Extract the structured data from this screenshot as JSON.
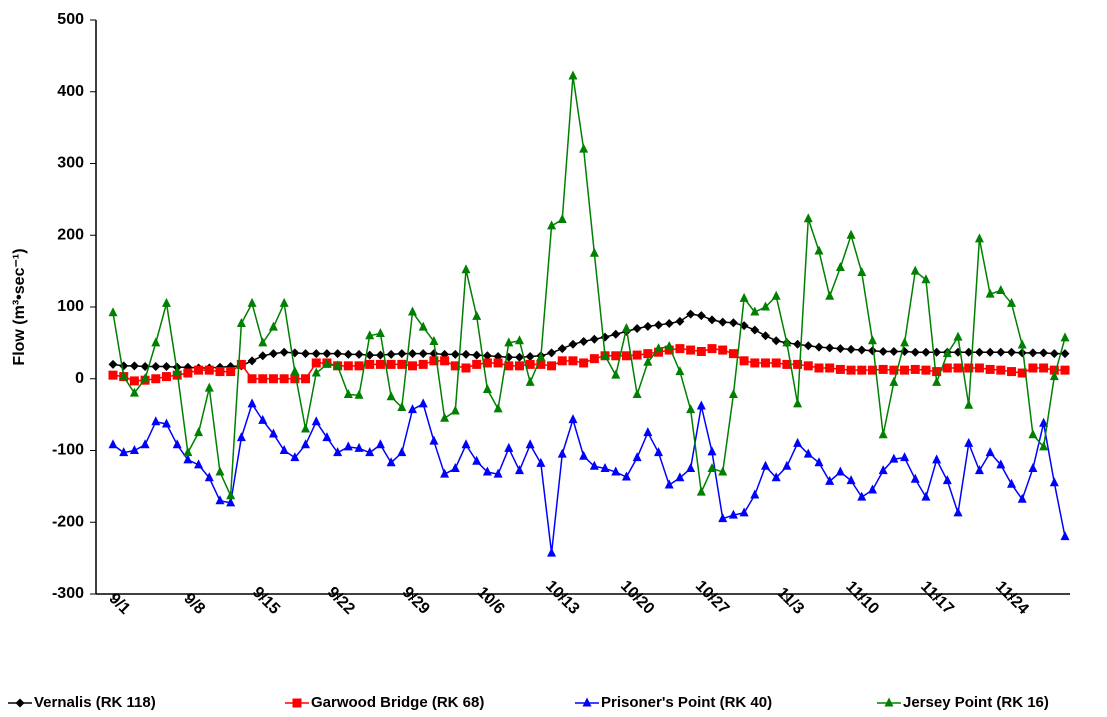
{
  "chart_data": {
    "type": "line",
    "y_label": "Flow (m³•sec⁻¹)",
    "categories": [
      "9/1",
      null,
      null,
      null,
      null,
      null,
      null,
      "9/8",
      null,
      null,
      null,
      null,
      null,
      null,
      "9/15",
      null,
      null,
      null,
      null,
      null,
      null,
      "9/22",
      null,
      null,
      null,
      null,
      null,
      null,
      "9/29",
      null,
      null,
      null,
      null,
      null,
      null,
      "10/6",
      null,
      null,
      null,
      null,
      null,
      null,
      "10/13",
      null,
      null,
      null,
      null,
      null,
      null,
      "10/20",
      null,
      null,
      null,
      null,
      null,
      null,
      "10/27",
      null,
      null,
      null,
      null,
      null,
      null,
      "11/3",
      null,
      null,
      null,
      null,
      null,
      null,
      "11/10",
      null,
      null,
      null,
      null,
      null,
      null,
      "11/17",
      null,
      null,
      null,
      null,
      null,
      null,
      "11/24",
      null,
      null,
      null,
      null,
      null
    ],
    "series": [
      {
        "name": "Vernalis (RK 118)",
        "color": "#000000",
        "marker": "diamond",
        "values": [
          20,
          18,
          18,
          17,
          17,
          17,
          16,
          16,
          15,
          15,
          16,
          17,
          18,
          25,
          32,
          35,
          37,
          36,
          35,
          35,
          35,
          35,
          34,
          34,
          33,
          33,
          34,
          35,
          35,
          35,
          35,
          34,
          34,
          34,
          33,
          32,
          31,
          30,
          30,
          31,
          32,
          36,
          42,
          48,
          52,
          55,
          58,
          62,
          66,
          70,
          73,
          75,
          77,
          80,
          90,
          88,
          82,
          79,
          78,
          74,
          68,
          60,
          53,
          50,
          48,
          46,
          44,
          43,
          42,
          41,
          40,
          39,
          38,
          38,
          38,
          37,
          37,
          37,
          37,
          37,
          37,
          37,
          37,
          37,
          37,
          36,
          36,
          36,
          35,
          35
        ]
      },
      {
        "name": "Garwood Bridge (RK 68)",
        "color": "#ff0000",
        "marker": "square",
        "values": [
          5,
          3,
          -3,
          -2,
          0,
          3,
          5,
          8,
          12,
          12,
          10,
          10,
          20,
          0,
          0,
          0,
          0,
          0,
          0,
          22,
          22,
          18,
          18,
          18,
          20,
          20,
          20,
          20,
          18,
          20,
          25,
          25,
          18,
          15,
          20,
          22,
          22,
          18,
          18,
          20,
          20,
          18,
          25,
          25,
          22,
          28,
          32,
          32,
          32,
          33,
          35,
          37,
          40,
          42,
          40,
          38,
          42,
          40,
          35,
          25,
          22,
          22,
          22,
          20,
          20,
          18,
          15,
          15,
          13,
          12,
          12,
          12,
          13,
          12,
          12,
          13,
          12,
          10,
          15,
          15,
          15,
          15,
          13,
          12,
          10,
          8,
          15,
          15,
          12,
          12
        ]
      },
      {
        "name": "Prisoner's Point (RK 40)",
        "color": "#0000ff",
        "marker": "triangle",
        "values": [
          -92,
          -103,
          -100,
          -92,
          -60,
          -63,
          -92,
          -113,
          -120,
          -138,
          -170,
          -173,
          -82,
          -35,
          -58,
          -77,
          -100,
          -110,
          -92,
          -60,
          -82,
          -103,
          -95,
          -97,
          -103,
          -92,
          -117,
          -103,
          -43,
          -35,
          -87,
          -133,
          -125,
          -92,
          -115,
          -130,
          -133,
          -97,
          -128,
          -92,
          -118,
          -243,
          -105,
          -57,
          -108,
          -122,
          -125,
          -130,
          -137,
          -110,
          -75,
          -103,
          -148,
          -138,
          -125,
          -38,
          -102,
          -195,
          -190,
          -187,
          -162,
          -122,
          -138,
          -122,
          -90,
          -105,
          -117,
          -143,
          -130,
          -142,
          -165,
          -155,
          -128,
          -112,
          -110,
          -140,
          -165,
          -113,
          -142,
          -187,
          -90,
          -128,
          -103,
          -120,
          -147,
          -168,
          -125,
          -62,
          -145,
          -220
        ]
      },
      {
        "name": "Jersey Point (RK 16)",
        "color": "#008000",
        "marker": "triangle",
        "values": [
          92,
          3,
          -20,
          0,
          50,
          105,
          10,
          -103,
          -75,
          -13,
          -130,
          -163,
          77,
          105,
          50,
          72,
          105,
          10,
          -70,
          8,
          20,
          18,
          -22,
          -23,
          60,
          63,
          -25,
          -40,
          93,
          72,
          52,
          -55,
          -45,
          152,
          87,
          -15,
          -42,
          50,
          53,
          -5,
          30,
          213,
          222,
          422,
          320,
          175,
          32,
          5,
          70,
          -22,
          23,
          42,
          45,
          10,
          -43,
          -158,
          -125,
          -130,
          -22,
          112,
          93,
          100,
          115,
          50,
          -35,
          223,
          178,
          115,
          155,
          200,
          148,
          53,
          -78,
          -5,
          50,
          150,
          138,
          -5,
          35,
          58,
          -37,
          195,
          118,
          123,
          105,
          47,
          -78,
          -95,
          3,
          57
        ]
      }
    ],
    "ylim": [
      -300,
      500
    ],
    "yticks": [
      -300,
      -200,
      -100,
      0,
      100,
      200,
      300,
      400,
      500
    ],
    "grid": false,
    "legend": "bottom"
  }
}
